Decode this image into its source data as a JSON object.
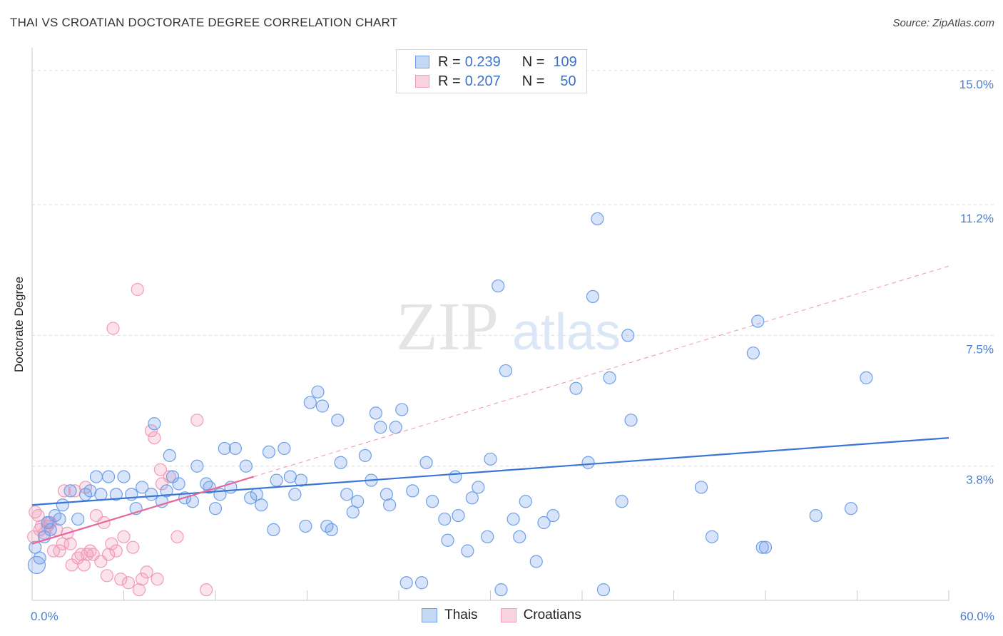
{
  "title": "THAI VS CROATIAN DOCTORATE DEGREE CORRELATION CHART",
  "source": "Source: ZipAtlas.com",
  "watermark": {
    "zip": "ZIP",
    "atlas": "atlas"
  },
  "legend": {
    "rows": [
      {
        "r_label": "R =",
        "r_value": "0.239",
        "n_label": "N =",
        "n_value": "109"
      },
      {
        "r_label": "R =",
        "r_value": "0.207",
        "n_label": "N =",
        "n_value": "50"
      }
    ]
  },
  "bottom_legend": {
    "thais": "Thais",
    "croatians": "Croatians"
  },
  "chart_data": {
    "type": "scatter",
    "title": "THAI VS CROATIAN DOCTORATE DEGREE CORRELATION CHART",
    "xlabel": "",
    "ylabel": "Doctorate Degree",
    "xlim": [
      0,
      60
    ],
    "ylim": [
      0,
      15.4
    ],
    "x_tick_labels": [
      "0.0%",
      "60.0%"
    ],
    "y_ticks": [
      3.8,
      7.5,
      11.2,
      15.0
    ],
    "y_tick_labels": [
      "3.8%",
      "7.5%",
      "11.2%",
      "15.0%"
    ],
    "grid": "horizontal dashed",
    "legend_position": "top-center",
    "colors": {
      "thais": "#6f9fe8",
      "croatians": "#f29bb8",
      "thais_line": "#3a76d6",
      "croatians_line": "#e8679a"
    },
    "series": [
      {
        "name": "Thais",
        "r": 0.239,
        "n": 109,
        "trend": {
          "x": [
            0,
            60
          ],
          "y": [
            2.7,
            4.6
          ]
        },
        "points": [
          [
            0.2,
            1.5
          ],
          [
            0.5,
            1.2
          ],
          [
            0.8,
            1.8
          ],
          [
            1.0,
            2.2
          ],
          [
            1.2,
            2.0
          ],
          [
            1.5,
            2.4
          ],
          [
            2.0,
            2.7
          ],
          [
            2.5,
            3.1
          ],
          [
            3.0,
            2.3
          ],
          [
            3.5,
            3.0
          ],
          [
            3.8,
            3.1
          ],
          [
            4.2,
            3.5
          ],
          [
            4.5,
            3.0
          ],
          [
            5.0,
            3.5
          ],
          [
            5.5,
            3.0
          ],
          [
            6.0,
            3.5
          ],
          [
            6.5,
            3.0
          ],
          [
            6.8,
            2.6
          ],
          [
            7.2,
            3.2
          ],
          [
            7.8,
            3.0
          ],
          [
            8.0,
            5.0
          ],
          [
            8.5,
            2.8
          ],
          [
            8.8,
            3.1
          ],
          [
            9.2,
            3.5
          ],
          [
            9.0,
            4.1
          ],
          [
            9.6,
            3.3
          ],
          [
            10.0,
            2.9
          ],
          [
            10.5,
            2.8
          ],
          [
            10.8,
            3.8
          ],
          [
            11.4,
            3.3
          ],
          [
            11.6,
            3.2
          ],
          [
            12.0,
            2.6
          ],
          [
            12.3,
            3.0
          ],
          [
            12.6,
            4.3
          ],
          [
            13.0,
            3.2
          ],
          [
            13.3,
            4.3
          ],
          [
            14.0,
            3.8
          ],
          [
            14.3,
            2.9
          ],
          [
            14.7,
            3.0
          ],
          [
            15.0,
            2.7
          ],
          [
            15.5,
            4.2
          ],
          [
            15.8,
            2.0
          ],
          [
            16.0,
            3.4
          ],
          [
            16.5,
            4.3
          ],
          [
            16.9,
            3.5
          ],
          [
            17.2,
            3.0
          ],
          [
            17.6,
            3.4
          ],
          [
            17.9,
            2.1
          ],
          [
            18.2,
            5.6
          ],
          [
            18.7,
            5.9
          ],
          [
            19.0,
            5.5
          ],
          [
            19.3,
            2.1
          ],
          [
            19.6,
            2.0
          ],
          [
            20.0,
            5.1
          ],
          [
            20.2,
            3.9
          ],
          [
            20.6,
            3.0
          ],
          [
            21.0,
            2.5
          ],
          [
            21.3,
            2.8
          ],
          [
            21.8,
            4.1
          ],
          [
            22.2,
            3.4
          ],
          [
            22.5,
            5.3
          ],
          [
            22.8,
            4.9
          ],
          [
            23.2,
            3.0
          ],
          [
            23.4,
            2.7
          ],
          [
            23.8,
            4.9
          ],
          [
            24.2,
            5.4
          ],
          [
            24.5,
            0.5
          ],
          [
            24.9,
            3.1
          ],
          [
            25.5,
            0.5
          ],
          [
            25.8,
            3.9
          ],
          [
            26.2,
            2.8
          ],
          [
            27.0,
            2.3
          ],
          [
            27.2,
            1.7
          ],
          [
            27.7,
            3.5
          ],
          [
            27.9,
            2.4
          ],
          [
            28.5,
            1.4
          ],
          [
            28.8,
            2.9
          ],
          [
            29.2,
            3.2
          ],
          [
            29.8,
            1.8
          ],
          [
            30.0,
            4.0
          ],
          [
            30.5,
            8.9
          ],
          [
            30.7,
            0.3
          ],
          [
            31.0,
            6.5
          ],
          [
            31.5,
            2.3
          ],
          [
            31.9,
            1.8
          ],
          [
            32.3,
            2.8
          ],
          [
            33.0,
            1.1
          ],
          [
            33.5,
            2.2
          ],
          [
            34.1,
            2.4
          ],
          [
            35.6,
            6.0
          ],
          [
            36.4,
            3.9
          ],
          [
            36.7,
            8.6
          ],
          [
            37.0,
            10.8
          ],
          [
            37.4,
            0.3
          ],
          [
            37.8,
            6.3
          ],
          [
            38.6,
            2.8
          ],
          [
            39.0,
            7.5
          ],
          [
            39.2,
            5.1
          ],
          [
            43.8,
            3.2
          ],
          [
            44.5,
            1.8
          ],
          [
            47.2,
            7.0
          ],
          [
            47.5,
            7.9
          ],
          [
            47.8,
            1.5
          ],
          [
            48.0,
            1.5
          ],
          [
            51.3,
            2.4
          ],
          [
            53.6,
            2.6
          ],
          [
            54.6,
            6.3
          ],
          [
            0.3,
            1.0
          ],
          [
            1.8,
            2.3
          ]
        ]
      },
      {
        "name": "Croatians",
        "r": 0.207,
        "n": 50,
        "trend": {
          "x": [
            0,
            14.5
          ],
          "y": [
            1.6,
            3.5
          ]
        },
        "points": [
          [
            0.2,
            2.5
          ],
          [
            0.4,
            2.4
          ],
          [
            0.6,
            2.1
          ],
          [
            0.8,
            1.9
          ],
          [
            1.0,
            2.1
          ],
          [
            1.2,
            2.2
          ],
          [
            1.4,
            1.4
          ],
          [
            1.6,
            2.0
          ],
          [
            1.8,
            1.4
          ],
          [
            2.0,
            1.6
          ],
          [
            2.1,
            3.1
          ],
          [
            2.3,
            1.9
          ],
          [
            2.5,
            1.6
          ],
          [
            2.6,
            1.0
          ],
          [
            2.8,
            3.1
          ],
          [
            3.0,
            1.2
          ],
          [
            3.2,
            1.3
          ],
          [
            3.4,
            1.0
          ],
          [
            3.5,
            3.2
          ],
          [
            3.6,
            1.3
          ],
          [
            3.8,
            1.4
          ],
          [
            4.0,
            1.3
          ],
          [
            4.2,
            2.4
          ],
          [
            4.5,
            1.1
          ],
          [
            4.7,
            2.2
          ],
          [
            4.9,
            0.7
          ],
          [
            5.0,
            1.3
          ],
          [
            5.2,
            1.6
          ],
          [
            5.3,
            7.7
          ],
          [
            5.5,
            1.4
          ],
          [
            5.8,
            0.6
          ],
          [
            6.0,
            1.8
          ],
          [
            6.3,
            0.5
          ],
          [
            6.6,
            1.5
          ],
          [
            6.9,
            8.8
          ],
          [
            7.2,
            0.6
          ],
          [
            7.5,
            0.8
          ],
          [
            7.8,
            4.8
          ],
          [
            8.0,
            4.6
          ],
          [
            8.2,
            0.6
          ],
          [
            8.4,
            3.7
          ],
          [
            8.5,
            3.3
          ],
          [
            9.0,
            3.5
          ],
          [
            9.5,
            1.8
          ],
          [
            10.8,
            5.1
          ],
          [
            11.4,
            0.3
          ],
          [
            0.1,
            1.8
          ],
          [
            0.5,
            2.0
          ],
          [
            1.1,
            2.2
          ],
          [
            7.0,
            0.3
          ]
        ]
      }
    ]
  }
}
